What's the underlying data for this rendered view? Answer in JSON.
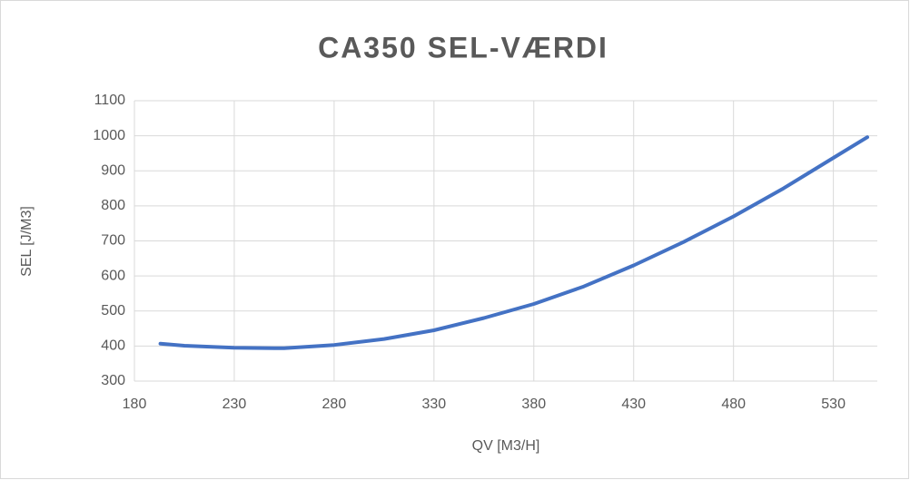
{
  "chart_data": {
    "type": "line",
    "title": "CA350 SEL-VÆRDI",
    "x_label": "QV [M3/H]",
    "y_label": "SEL [J/M3]",
    "x": [
      193,
      205,
      230,
      250,
      255,
      280,
      305,
      330,
      355,
      380,
      405,
      430,
      455,
      480,
      505,
      530,
      547
    ],
    "series": [
      {
        "name": "SEL",
        "color": "#4472c4",
        "values": [
          407,
          401,
          395,
          394,
          394,
          403,
          420,
          445,
          480,
          520,
          570,
          630,
          697,
          770,
          850,
          937,
          996
        ]
      }
    ],
    "xlim": [
      180,
      552
    ],
    "xticks": [
      180,
      230,
      280,
      330,
      380,
      430,
      480,
      530
    ],
    "ylim": [
      300,
      1100
    ],
    "yticks": [
      300,
      400,
      500,
      600,
      700,
      800,
      900,
      1000,
      1100
    ],
    "grid": true
  }
}
